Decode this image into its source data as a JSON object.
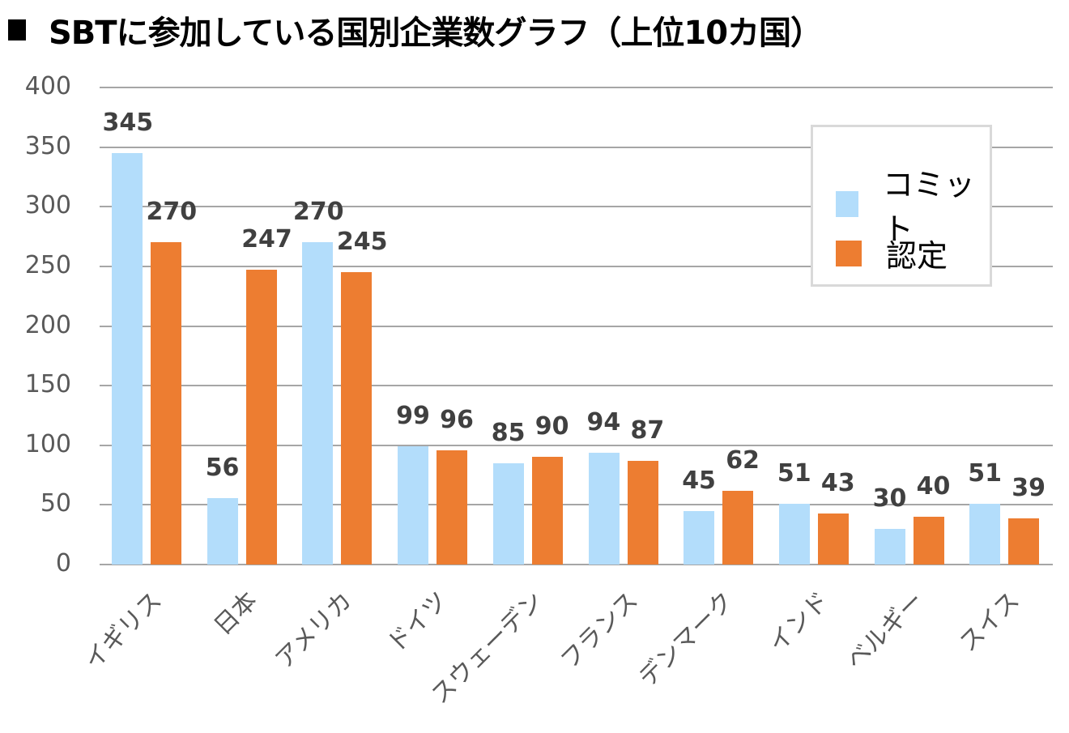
{
  "title": "SBTに参加している国別企業数グラフ（上位10カ国）",
  "legend": {
    "items": [
      {
        "label": "コミット",
        "color": "#b3ddfb"
      },
      {
        "label": "認定",
        "color": "#ed7d31"
      }
    ]
  },
  "y_axis": {
    "ticks": [
      "400",
      "350",
      "300",
      "250",
      "200",
      "150",
      "100",
      "50",
      "0"
    ]
  },
  "categories": [
    "イギリス",
    "日本",
    "アメリカ",
    "ドイツ",
    "スウェーデン",
    "フランス",
    "デンマーク",
    "インド",
    "ベルギー",
    "スイス"
  ],
  "labels": {
    "commit": [
      "345",
      "56",
      "270",
      "99",
      "85",
      "94",
      "45",
      "51",
      "30",
      "51"
    ],
    "cert": [
      "270",
      "247",
      "245",
      "96",
      "90",
      "87",
      "62",
      "43",
      "40",
      "39"
    ]
  },
  "chart_data": {
    "type": "bar",
    "title": "SBTに参加している国別企業数グラフ（上位10カ国）",
    "xlabel": "",
    "ylabel": "",
    "ylim": [
      0,
      400
    ],
    "yticks": [
      0,
      50,
      100,
      150,
      200,
      250,
      300,
      350,
      400
    ],
    "grid": true,
    "legend_position": "upper right (inside plot)",
    "categories": [
      "イギリス",
      "日本",
      "アメリカ",
      "ドイツ",
      "スウェーデン",
      "フランス",
      "デンマーク",
      "インド",
      "ベルギー",
      "スイス"
    ],
    "series": [
      {
        "name": "コミット",
        "color": "#b3ddfb",
        "values": [
          345,
          56,
          270,
          99,
          85,
          94,
          45,
          51,
          30,
          51
        ]
      },
      {
        "name": "認定",
        "color": "#ed7d31",
        "values": [
          270,
          247,
          245,
          96,
          90,
          87,
          62,
          43,
          40,
          39
        ]
      }
    ]
  }
}
